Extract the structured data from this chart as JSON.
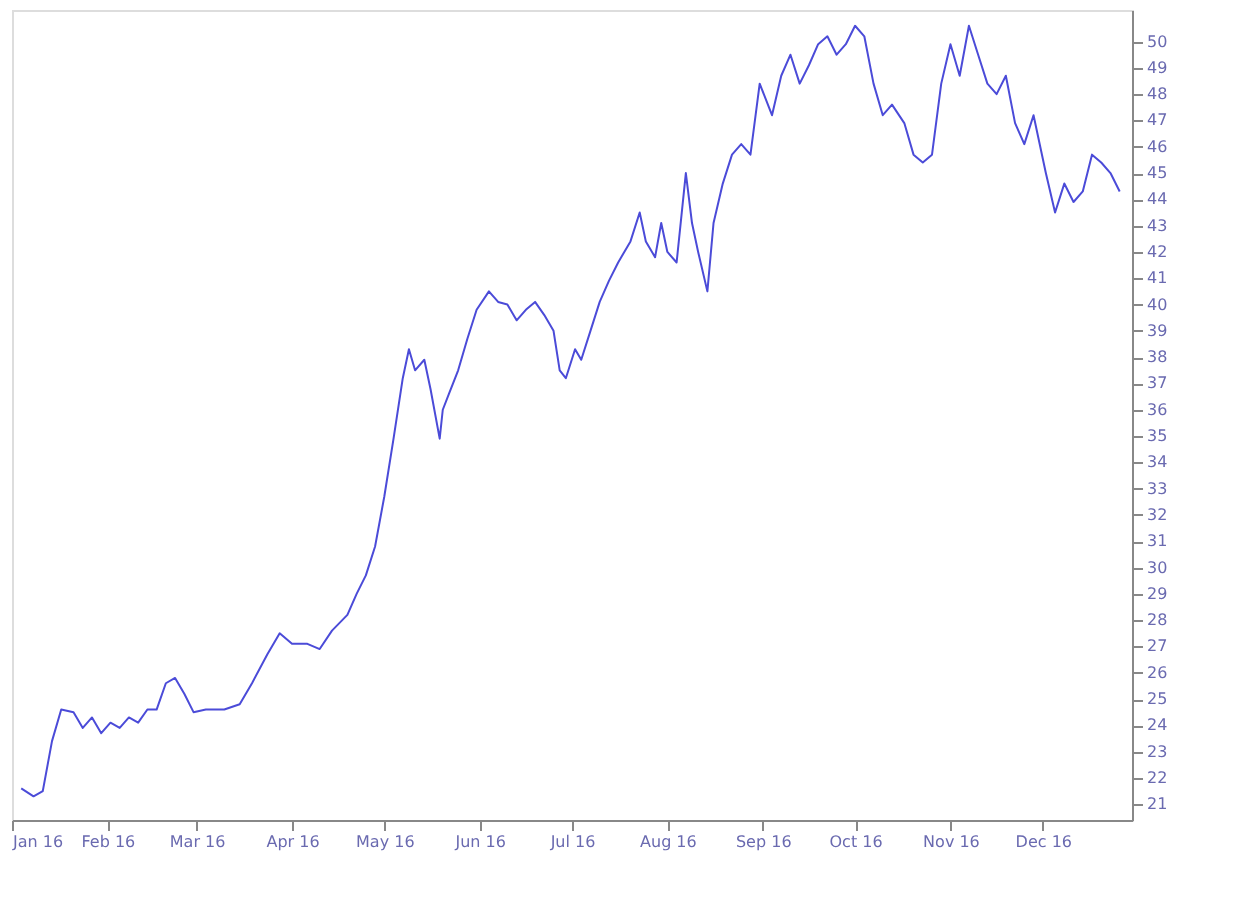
{
  "chart_data": {
    "type": "line",
    "color": "#4b4bd8",
    "grid": false,
    "x": [
      "2016-01-04",
      "2016-01-08",
      "2016-01-11",
      "2016-01-14",
      "2016-01-17",
      "2016-01-21",
      "2016-01-24",
      "2016-01-27",
      "2016-01-30",
      "2016-02-02",
      "2016-02-05",
      "2016-02-08",
      "2016-02-11",
      "2016-02-14",
      "2016-02-17",
      "2016-02-20",
      "2016-02-23",
      "2016-02-26",
      "2016-02-29",
      "2016-03-04",
      "2016-03-10",
      "2016-03-15",
      "2016-03-19",
      "2016-03-24",
      "2016-03-28",
      "2016-04-01",
      "2016-04-06",
      "2016-04-10",
      "2016-04-14",
      "2016-04-19",
      "2016-04-22",
      "2016-04-25",
      "2016-04-28",
      "2016-05-01",
      "2016-05-04",
      "2016-05-07",
      "2016-05-09",
      "2016-05-11",
      "2016-05-14",
      "2016-05-16",
      "2016-05-19",
      "2016-05-20",
      "2016-05-22",
      "2016-05-25",
      "2016-05-28",
      "2016-05-31",
      "2016-06-04",
      "2016-06-07",
      "2016-06-10",
      "2016-06-13",
      "2016-06-16",
      "2016-06-19",
      "2016-06-22",
      "2016-06-25",
      "2016-06-27",
      "2016-06-29",
      "2016-07-02",
      "2016-07-04",
      "2016-07-07",
      "2016-07-10",
      "2016-07-13",
      "2016-07-16",
      "2016-07-20",
      "2016-07-23",
      "2016-07-25",
      "2016-07-28",
      "2016-07-30",
      "2016-08-01",
      "2016-08-04",
      "2016-08-07",
      "2016-08-09",
      "2016-08-11",
      "2016-08-14",
      "2016-08-16",
      "2016-08-19",
      "2016-08-22",
      "2016-08-25",
      "2016-08-28",
      "2016-08-31",
      "2016-09-04",
      "2016-09-07",
      "2016-09-10",
      "2016-09-13",
      "2016-09-16",
      "2016-09-19",
      "2016-09-22",
      "2016-09-25",
      "2016-09-28",
      "2016-10-01",
      "2016-10-04",
      "2016-10-07",
      "2016-10-10",
      "2016-10-13",
      "2016-10-17",
      "2016-10-20",
      "2016-10-23",
      "2016-10-26",
      "2016-10-29",
      "2016-11-01",
      "2016-11-04",
      "2016-11-07",
      "2016-11-10",
      "2016-11-13",
      "2016-11-16",
      "2016-11-19",
      "2016-11-22",
      "2016-11-25",
      "2016-11-28",
      "2016-12-02",
      "2016-12-05",
      "2016-12-08",
      "2016-12-11",
      "2016-12-14",
      "2016-12-17",
      "2016-12-20",
      "2016-12-23",
      "2016-12-26"
    ],
    "values": [
      21.6,
      21.3,
      21.5,
      23.4,
      24.6,
      24.5,
      23.9,
      24.3,
      23.7,
      24.1,
      23.9,
      24.3,
      24.1,
      24.6,
      24.6,
      25.6,
      25.8,
      25.2,
      24.5,
      24.6,
      24.6,
      24.8,
      25.6,
      26.7,
      27.5,
      27.1,
      27.1,
      26.9,
      27.6,
      28.2,
      29.0,
      29.7,
      30.8,
      32.7,
      34.9,
      37.2,
      38.3,
      37.5,
      37.9,
      36.8,
      34.9,
      36.0,
      36.6,
      37.5,
      38.7,
      39.8,
      40.5,
      40.1,
      40.0,
      39.4,
      39.8,
      40.1,
      39.6,
      39.0,
      37.5,
      37.2,
      38.3,
      37.9,
      39.0,
      40.1,
      40.9,
      41.6,
      42.4,
      43.5,
      42.4,
      41.8,
      43.1,
      42.0,
      41.6,
      45.0,
      43.1,
      42.0,
      40.5,
      43.1,
      44.6,
      45.7,
      46.1,
      45.7,
      48.4,
      47.2,
      48.7,
      49.5,
      48.4,
      49.1,
      49.9,
      50.2,
      49.5,
      49.9,
      50.6,
      50.2,
      48.4,
      47.2,
      47.6,
      46.9,
      45.7,
      45.4,
      45.7,
      48.4,
      49.9,
      48.7,
      50.6,
      49.5,
      48.4,
      48.0,
      48.7,
      46.9,
      46.1,
      47.2,
      45.0,
      43.5,
      44.6,
      43.9,
      44.3,
      45.7,
      45.4,
      45.0,
      44.3
    ],
    "xlim": [
      "2016-01-01",
      "2016-12-30"
    ],
    "xticks": [
      {
        "value": "2016-01-01",
        "label": "Jan 16"
      },
      {
        "value": "2016-02-01",
        "label": "Feb 16"
      },
      {
        "value": "2016-03-01",
        "label": "Mar 16"
      },
      {
        "value": "2016-04-01",
        "label": "Apr 16"
      },
      {
        "value": "2016-05-01",
        "label": "May 16"
      },
      {
        "value": "2016-06-01",
        "label": "Jun 16"
      },
      {
        "value": "2016-07-01",
        "label": "Jul 16"
      },
      {
        "value": "2016-08-01",
        "label": "Aug 16"
      },
      {
        "value": "2016-09-01",
        "label": "Sep 16"
      },
      {
        "value": "2016-10-01",
        "label": "Oct 16"
      },
      {
        "value": "2016-11-01",
        "label": "Nov 16"
      },
      {
        "value": "2016-12-01",
        "label": "Dec 16"
      }
    ],
    "ylim": [
      20.4,
      51.2
    ],
    "yticks": [
      21,
      22,
      23,
      24,
      25,
      26,
      27,
      28,
      29,
      30,
      31,
      32,
      33,
      34,
      35,
      36,
      37,
      38,
      39,
      40,
      41,
      42,
      43,
      44,
      45,
      46,
      47,
      48,
      49,
      50
    ]
  }
}
